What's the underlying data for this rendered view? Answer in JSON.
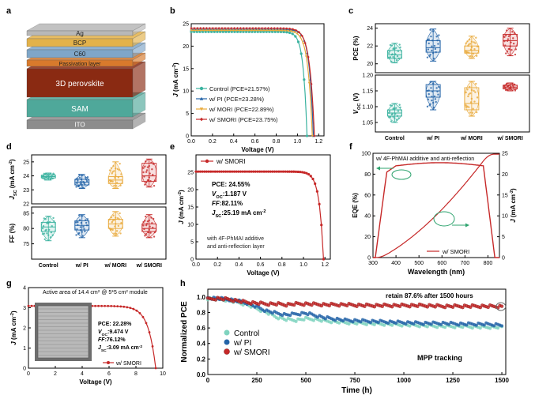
{
  "panels": {
    "a": {
      "letter": "a",
      "layers": [
        {
          "label": "Ag",
          "color": "#b8b8b8"
        },
        {
          "label": "BCP",
          "color": "#e3b24a"
        },
        {
          "label": "C60",
          "color": "#7fa6c8"
        },
        {
          "label": "Passivation layer",
          "color": "#d87a2c"
        },
        {
          "label": "3D perovskite",
          "color": "#8a2a12"
        },
        {
          "label": "SAM",
          "color": "#4fa89a"
        },
        {
          "label": "ITO",
          "color": "#8c8c8c"
        }
      ]
    },
    "b": {
      "letter": "b",
      "chart_data": {
        "type": "line",
        "xlabel": "Voltage (V)",
        "ylabel_main": "J",
        "ylabel_unit": "(mA cm",
        "ylabel_sup": "-2",
        "ylabel_close": ")",
        "xlim": [
          0,
          1.25
        ],
        "ylim": [
          0,
          25
        ],
        "xticks": [
          "0.0",
          "0.2",
          "0.4",
          "0.6",
          "0.8",
          "1.0",
          "1.2"
        ],
        "yticks": [
          "0",
          "5",
          "10",
          "15",
          "20",
          "25"
        ],
        "series": [
          {
            "name": "Control (PCE=21.57%)",
            "color": "#3cb3a0",
            "marker": "circle",
            "jsc": 23.2,
            "voc": 1.09,
            "n": 1.8
          },
          {
            "name": "w/ PI (PCE=23.28%)",
            "color": "#2464a8",
            "marker": "triangle",
            "jsc": 23.7,
            "voc": 1.15,
            "n": 1.6
          },
          {
            "name": "w/ MORI (PCE=22.89%)",
            "color": "#e8a93a",
            "marker": "triangle-down",
            "jsc": 23.5,
            "voc": 1.14,
            "n": 1.65
          },
          {
            "name": "w/ SMORI (PCE=23.75%)",
            "color": "#c62828",
            "marker": "diamond",
            "jsc": 24.0,
            "voc": 1.16,
            "n": 1.55
          }
        ]
      }
    },
    "c": {
      "letter": "c",
      "chart_data": {
        "type": "box",
        "categories": [
          "Control",
          "w/ PI",
          "w/ MORI",
          "w/ SMORI"
        ],
        "colors": [
          "#3cb3a0",
          "#2464a8",
          "#e8a93a",
          "#c62828"
        ],
        "top": {
          "ylabel": "PCE (%)",
          "ylim": [
            19,
            24.5
          ],
          "yticks": [
            "20",
            "22",
            "24"
          ],
          "boxes": [
            {
              "min": 20.1,
              "q1": 20.6,
              "med": 21.0,
              "q3": 21.5,
              "max": 22.3
            },
            {
              "min": 20.3,
              "q1": 21.3,
              "med": 21.8,
              "q3": 22.6,
              "max": 23.9
            },
            {
              "min": 20.6,
              "q1": 21.2,
              "med": 21.5,
              "q3": 22.0,
              "max": 23.1
            },
            {
              "min": 20.9,
              "q1": 22.0,
              "med": 22.6,
              "q3": 23.3,
              "max": 24.0
            }
          ]
        },
        "bottom": {
          "ylabel_main": "V",
          "ylabel_sub": "OC",
          "ylabel_unit": " (V)",
          "ylim": [
            1.02,
            1.2
          ],
          "yticks": [
            "1.05",
            "1.10",
            "1.15",
            "1.20"
          ],
          "boxes": [
            {
              "min": 1.05,
              "q1": 1.07,
              "med": 1.08,
              "q3": 1.09,
              "max": 1.11
            },
            {
              "min": 1.09,
              "q1": 1.13,
              "med": 1.15,
              "q3": 1.17,
              "max": 1.18
            },
            {
              "min": 1.07,
              "q1": 1.09,
              "med": 1.11,
              "q3": 1.16,
              "max": 1.18
            },
            {
              "min": 1.15,
              "q1": 1.156,
              "med": 1.162,
              "q3": 1.168,
              "max": 1.175
            }
          ]
        }
      }
    },
    "d": {
      "letter": "d",
      "chart_data": {
        "type": "box",
        "categories": [
          "Control",
          "w/ PI",
          "w/ MORI",
          "w/ SMORI"
        ],
        "colors": [
          "#3cb3a0",
          "#2464a8",
          "#e8a93a",
          "#c62828"
        ],
        "top": {
          "ylabel_main": "J",
          "ylabel_sub": "SC",
          "ylabel_unit": " (mA cm",
          "ylabel_sup": "-2",
          "ylabel_close": ")",
          "ylim": [
            22,
            25.5
          ],
          "yticks": [
            "22",
            "23",
            "24",
            "25"
          ],
          "boxes": [
            {
              "min": 23.7,
              "q1": 23.85,
              "med": 23.95,
              "q3": 24.05,
              "max": 24.2
            },
            {
              "min": 23.1,
              "q1": 23.35,
              "med": 23.55,
              "q3": 23.75,
              "max": 24.1
            },
            {
              "min": 23.1,
              "q1": 23.45,
              "med": 23.7,
              "q3": 23.95,
              "max": 25.0
            },
            {
              "min": 23.2,
              "q1": 23.6,
              "med": 24.0,
              "q3": 24.9,
              "max": 25.2
            }
          ]
        },
        "bottom": {
          "ylabel": "FF (%)",
          "ylim": [
            70,
            87
          ],
          "yticks": [
            "75",
            "80",
            "85"
          ],
          "boxes": [
            {
              "min": 76.0,
              "q1": 79.0,
              "med": 80.5,
              "q3": 82.0,
              "max": 84.0
            },
            {
              "min": 77.0,
              "q1": 79.5,
              "med": 81.0,
              "q3": 82.5,
              "max": 84.5
            },
            {
              "min": 77.5,
              "q1": 80.0,
              "med": 81.5,
              "q3": 83.0,
              "max": 85.5
            },
            {
              "min": 77.0,
              "q1": 79.0,
              "med": 80.0,
              "q3": 81.5,
              "max": 84.5
            }
          ]
        }
      }
    },
    "e": {
      "letter": "e",
      "chart_data": {
        "type": "line",
        "xlabel": "Voltage (V)",
        "ylabel_main": "J",
        "ylabel_unit": " (mA cm",
        "ylabel_sup": "-2",
        "ylabel_close": ")",
        "xlim": [
          0,
          1.25
        ],
        "ylim": [
          0,
          30
        ],
        "xticks": [
          "0.0",
          "0.2",
          "0.4",
          "0.6",
          "0.8",
          "1.0",
          "1.2"
        ],
        "yticks": [
          "0",
          "5",
          "10",
          "15",
          "20",
          "25"
        ],
        "series": [
          {
            "name": "w/ SMORI",
            "color": "#c62828",
            "jsc": 25.19,
            "voc": 1.187,
            "n": 1.5
          }
        ],
        "params": [
          {
            "pre": "PCE: 24.55%",
            "sub": "",
            "post": ""
          },
          {
            "pre": "V",
            "sub": "OC",
            "post": ":1.187 V"
          },
          {
            "pre": "FF",
            "sub": "",
            "post": ":82.11%"
          },
          {
            "pre": "J",
            "sub": "SC",
            "post": ":25.19 mA cm"
          }
        ],
        "params_sup": "-2",
        "note": [
          "with 4F-PhMAI additive",
          "and anti-reflection layer"
        ]
      }
    },
    "f": {
      "letter": "f",
      "chart_data": {
        "type": "line",
        "title": "w/ 4F-PhMAI additive and anti-reflection",
        "xlabel": "Wavelength (nm)",
        "ylabel_left": "EQE (%)",
        "ylabel_right_main": "J",
        "ylabel_right_unit": " (mA cm",
        "ylabel_right_sup": "-2",
        "ylabel_right_close": ")",
        "xlim": [
          300,
          850
        ],
        "ylim_left": [
          0,
          100
        ],
        "ylim_right": [
          0,
          25
        ],
        "xticks": [
          "300",
          "400",
          "500",
          "600",
          "700",
          "800"
        ],
        "yticks_left": [
          "0",
          "20",
          "40",
          "60",
          "80",
          "100"
        ],
        "yticks_right": [
          "0",
          "5",
          "10",
          "15",
          "20",
          "25"
        ],
        "legend": "w/ SMORI",
        "color": "#c62828",
        "arrow_color": "#2ea36e"
      }
    },
    "g": {
      "letter": "g",
      "chart_data": {
        "type": "line",
        "title_pre": "Active area of 14.4 cm",
        "title_sup": "2",
        "title_post": " @ 5*5 cm",
        "title_sup2": "2",
        "title_end": " module",
        "xlabel": "Voltage (V)",
        "ylabel_main": "J",
        "ylabel_unit": " (mA cm",
        "ylabel_sup": "-2",
        "ylabel_close": ")",
        "xlim": [
          0,
          10
        ],
        "ylim": [
          0,
          4
        ],
        "xticks": [
          "0",
          "2",
          "4",
          "6",
          "8",
          "10"
        ],
        "yticks": [
          "0",
          "1",
          "2",
          "3",
          "4"
        ],
        "series": [
          {
            "name": "w/ SMORI",
            "color": "#c62828",
            "jsc": 3.09,
            "voc": 9.474,
            "n": 12
          }
        ],
        "params": [
          {
            "pre": "PCE: 22.28%",
            "sub": "",
            "post": ""
          },
          {
            "pre": "V",
            "sub": "OC",
            "post": ":9.474 V"
          },
          {
            "pre": "FF",
            "sub": "",
            "post": ":76.12%"
          },
          {
            "pre": "J",
            "sub": "SC",
            "post": ":3.09 mA cm"
          }
        ],
        "params_sup": "-2"
      }
    },
    "h": {
      "letter": "h",
      "chart_data": {
        "type": "scatter",
        "xlabel": "Time (h)",
        "ylabel": "Normalized PCE",
        "xlim": [
          0,
          1520
        ],
        "ylim": [
          0,
          1.1
        ],
        "xticks": [
          "0",
          "250",
          "500",
          "750",
          "1000",
          "1250",
          "1500"
        ],
        "yticks": [
          "0.0",
          "0.2",
          "0.4",
          "0.6",
          "0.8",
          "1.0"
        ],
        "annotation": "retain 87.6% after 1500 hours",
        "mpp_label": "MPP tracking",
        "series": [
          {
            "name": "Control",
            "color": "#7fd3bf",
            "points": [
              [
                0,
                0.98
              ],
              [
                50,
                0.97
              ],
              [
                100,
                0.96
              ],
              [
                150,
                0.93
              ],
              [
                200,
                0.9
              ],
              [
                250,
                0.85
              ],
              [
                300,
                0.8
              ],
              [
                350,
                0.74
              ],
              [
                400,
                0.71
              ],
              [
                450,
                0.7
              ],
              [
                500,
                0.72
              ],
              [
                550,
                0.71
              ],
              [
                600,
                0.69
              ],
              [
                700,
                0.67
              ],
              [
                800,
                0.66
              ],
              [
                900,
                0.65
              ],
              [
                1000,
                0.64
              ],
              [
                1100,
                0.63
              ],
              [
                1200,
                0.62
              ],
              [
                1300,
                0.62
              ],
              [
                1400,
                0.61
              ],
              [
                1500,
                0.61
              ]
            ]
          },
          {
            "name": "w/ PI",
            "color": "#2464a8",
            "points": [
              [
                0,
                0.99
              ],
              [
                50,
                0.98
              ],
              [
                100,
                0.97
              ],
              [
                150,
                0.95
              ],
              [
                200,
                0.92
              ],
              [
                250,
                0.87
              ],
              [
                300,
                0.82
              ],
              [
                350,
                0.79
              ],
              [
                400,
                0.77
              ],
              [
                450,
                0.78
              ],
              [
                500,
                0.79
              ],
              [
                550,
                0.76
              ],
              [
                600,
                0.73
              ],
              [
                700,
                0.7
              ],
              [
                800,
                0.69
              ],
              [
                900,
                0.68
              ],
              [
                1000,
                0.67
              ],
              [
                1100,
                0.66
              ],
              [
                1200,
                0.66
              ],
              [
                1300,
                0.65
              ],
              [
                1400,
                0.65
              ],
              [
                1500,
                0.64
              ]
            ]
          },
          {
            "name": "w/ SMORI",
            "color": "#c62828",
            "points": [
              [
                0,
                0.97
              ],
              [
                50,
                0.98
              ],
              [
                100,
                0.97
              ],
              [
                150,
                0.95
              ],
              [
                200,
                0.93
              ],
              [
                250,
                0.92
              ],
              [
                300,
                0.91
              ],
              [
                350,
                0.91
              ],
              [
                400,
                0.9
              ],
              [
                450,
                0.91
              ],
              [
                500,
                0.91
              ],
              [
                600,
                0.9
              ],
              [
                700,
                0.9
              ],
              [
                800,
                0.89
              ],
              [
                900,
                0.89
              ],
              [
                1000,
                0.89
              ],
              [
                1100,
                0.89
              ],
              [
                1200,
                0.88
              ],
              [
                1300,
                0.88
              ],
              [
                1400,
                0.88
              ],
              [
                1500,
                0.876
              ]
            ]
          }
        ]
      }
    }
  }
}
